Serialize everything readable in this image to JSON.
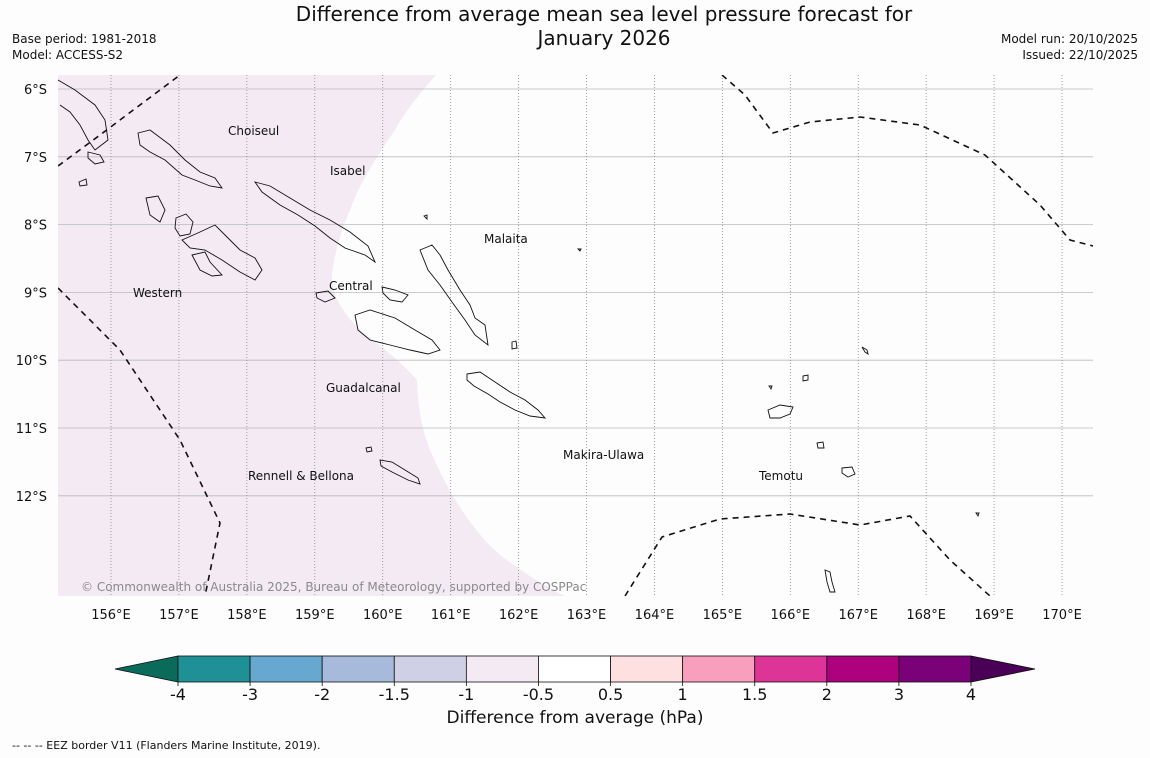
{
  "title": "Difference from average mean sea level pressure forecast for January 2026",
  "title_line1": "Difference from average mean sea level pressure forecast for",
  "title_line2": "January 2026",
  "meta_left": {
    "base_period": "Base period: 1981-2018",
    "model": "Model: ACCESS-S2"
  },
  "meta_right": {
    "model_run": "Model run: 20/10/2025",
    "issued": "Issued: 22/10/2025"
  },
  "map": {
    "lon_range": [
      155.2,
      170.5
    ],
    "lat_range": [
      -13.5,
      -5.8
    ],
    "lon_ticks": [
      "156°E",
      "157°E",
      "158°E",
      "159°E",
      "160°E",
      "161°E",
      "162°E",
      "163°E",
      "164°E",
      "165°E",
      "166°E",
      "167°E",
      "168°E",
      "169°E",
      "170°E"
    ],
    "lat_ticks": [
      "6°S",
      "7°S",
      "8°S",
      "9°S",
      "10°S",
      "11°S",
      "12°S"
    ],
    "region_labels": [
      "Choiseul",
      "Isabel",
      "Malaita",
      "Western",
      "Central",
      "Guadalcanal",
      "Makira-Ulawa",
      "Rennell & Bellona",
      "Temotu"
    ],
    "shading": {
      "category": "-1 to -0.5",
      "color": "#f3eaf4",
      "area": "western Solomon Islands"
    }
  },
  "credit": "© Commonwealth of Australia 2025, Bureau of Meteorology, supported by COSPPac",
  "colorbar": {
    "label": "Difference from average (hPa)",
    "ticks": [
      "-4",
      "-3",
      "-2",
      "-1.5",
      "-1",
      "-0.5",
      "0.5",
      "1",
      "1.5",
      "2",
      "3",
      "4"
    ],
    "colors": {
      "below": "#0b6b5a",
      "bins": [
        "#1f9196",
        "#67a8d0",
        "#a7badb",
        "#cfd0e5",
        "#f3eaf4",
        "#ffffff",
        "#fde0df",
        "#f99fbe",
        "#dc3597",
        "#ad017e",
        "#7a0177"
      ],
      "above": "#4b0058"
    }
  },
  "footnote": "--  --  -- EEZ border V11 (Flanders Marine Institute, 2019)."
}
